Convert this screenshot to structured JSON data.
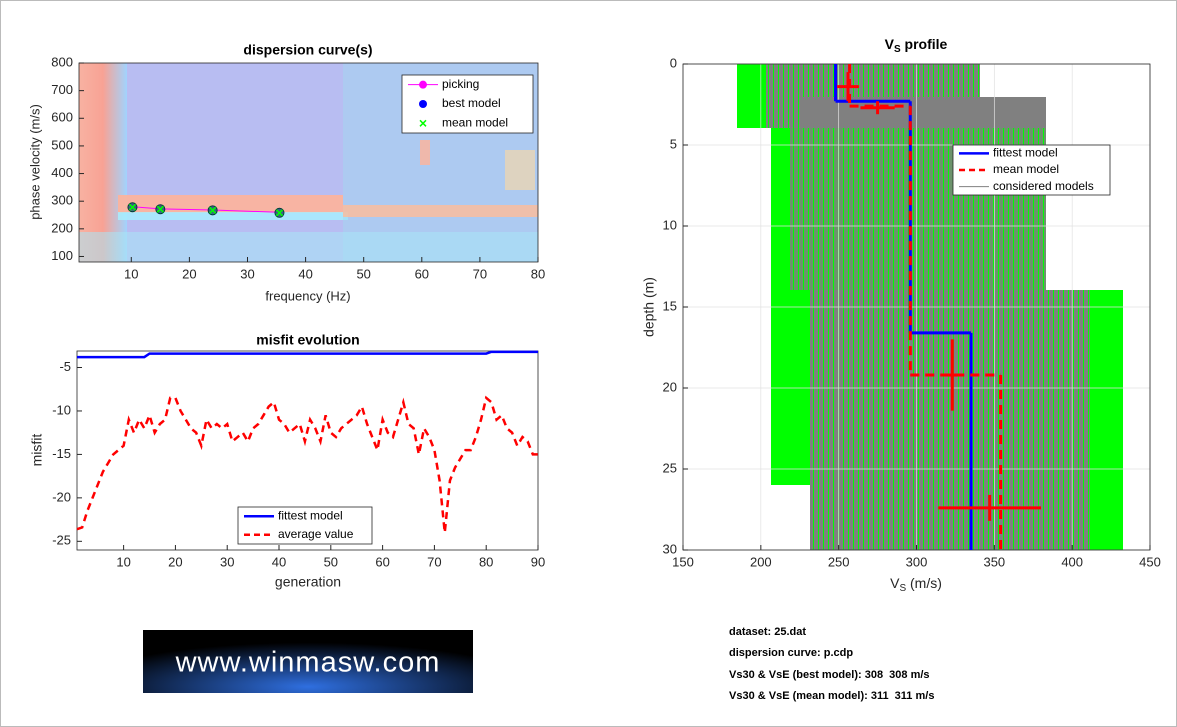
{
  "chart_data": [
    {
      "type": "scatter",
      "title": "dispersion curve(s)",
      "xlabel": "frequency (Hz)",
      "ylabel": "phase velocity (m/s)",
      "x": [
        10.2,
        15,
        24,
        35.5
      ],
      "series": [
        {
          "name": "picking",
          "color": "#ff00ff",
          "marker": "o",
          "line": true,
          "values": [
            280,
            272,
            268,
            260
          ]
        },
        {
          "name": "best model",
          "color": "#0000ff",
          "marker": "o",
          "line": false,
          "values": [
            278,
            271,
            267,
            258
          ]
        },
        {
          "name": "mean model",
          "color": "#00ff00",
          "marker": "x",
          "line": false,
          "values": [
            278,
            271,
            267,
            258
          ]
        }
      ],
      "xlim": [
        1,
        80
      ],
      "xticks": [
        10,
        20,
        30,
        40,
        50,
        60,
        70,
        80
      ],
      "ylim": [
        80,
        800
      ],
      "yticks": [
        100,
        200,
        300,
        400,
        500,
        600,
        700,
        800
      ],
      "grid": false,
      "legend": "upper right"
    },
    {
      "type": "line",
      "title": "misfit evolution",
      "xlabel": "generation",
      "ylabel": "misfit",
      "x": [
        1,
        2,
        3,
        4,
        5,
        6,
        7,
        8,
        9,
        10,
        11,
        12,
        13,
        14,
        15,
        16,
        17,
        18,
        19,
        20,
        21,
        22,
        23,
        24,
        25,
        26,
        27,
        28,
        29,
        30,
        31,
        32,
        33,
        34,
        35,
        36,
        37,
        38,
        39,
        40,
        41,
        42,
        43,
        44,
        45,
        46,
        47,
        48,
        49,
        50,
        51,
        52,
        53,
        54,
        55,
        56,
        57,
        58,
        59,
        60,
        61,
        62,
        63,
        64,
        65,
        66,
        67,
        68,
        69,
        70,
        71,
        72,
        73,
        74,
        75,
        76,
        77,
        78,
        79,
        80,
        81,
        82,
        83,
        84,
        85,
        86,
        87,
        88,
        89,
        90
      ],
      "series": [
        {
          "name": "fittest model",
          "color": "#0000ff",
          "dash": false,
          "values": [
            -3.8,
            -3.8,
            -3.8,
            -3.8,
            -3.8,
            -3.8,
            -3.8,
            -3.8,
            -3.8,
            -3.8,
            -3.8,
            -3.8,
            -3.8,
            -3.8,
            -3.4,
            -3.4,
            -3.4,
            -3.4,
            -3.4,
            -3.4,
            -3.4,
            -3.4,
            -3.4,
            -3.4,
            -3.4,
            -3.4,
            -3.4,
            -3.4,
            -3.4,
            -3.4,
            -3.4,
            -3.4,
            -3.4,
            -3.4,
            -3.4,
            -3.4,
            -3.4,
            -3.4,
            -3.4,
            -3.4,
            -3.4,
            -3.4,
            -3.4,
            -3.4,
            -3.4,
            -3.4,
            -3.4,
            -3.4,
            -3.4,
            -3.4,
            -3.4,
            -3.4,
            -3.4,
            -3.4,
            -3.4,
            -3.4,
            -3.4,
            -3.4,
            -3.4,
            -3.4,
            -3.4,
            -3.4,
            -3.4,
            -3.4,
            -3.4,
            -3.4,
            -3.4,
            -3.4,
            -3.4,
            -3.4,
            -3.4,
            -3.4,
            -3.4,
            -3.4,
            -3.4,
            -3.4,
            -3.4,
            -3.4,
            -3.4,
            -3.4,
            -3.2,
            -3.2,
            -3.2,
            -3.2,
            -3.2,
            -3.2,
            -3.2,
            -3.2,
            -3.2,
            -3.2
          ]
        },
        {
          "name": "average value",
          "color": "#ff0000",
          "dash": true,
          "values": [
            -23.6,
            -23.4,
            -21.5,
            -20,
            -18.5,
            -17,
            -16,
            -15,
            -14.5,
            -14,
            -11,
            -12.5,
            -11,
            -12,
            -10.5,
            -12.5,
            -11.5,
            -11,
            -8.5,
            -8.5,
            -10,
            -11,
            -12,
            -12.5,
            -14,
            -11,
            -12,
            -11.5,
            -12,
            -11.5,
            -13.5,
            -13,
            -12.5,
            -13.5,
            -12,
            -11.5,
            -10.5,
            -9.5,
            -9,
            -11,
            -11.5,
            -12.5,
            -12,
            -11.5,
            -13.5,
            -11,
            -12,
            -13.5,
            -10.5,
            -12.5,
            -13,
            -12,
            -11.5,
            -11,
            -10.5,
            -9.5,
            -11.5,
            -13,
            -14.5,
            -11,
            -12.5,
            -13,
            -11,
            -9,
            -11.5,
            -12,
            -15,
            -12,
            -13,
            -14.5,
            -18,
            -24,
            -18,
            -16.5,
            -15.5,
            -14.5,
            -14.5,
            -13,
            -11,
            -8.5,
            -9,
            -11,
            -10.5,
            -12,
            -12.5,
            -14,
            -13,
            -13.5,
            -15,
            -15
          ]
        }
      ],
      "xlim": [
        1,
        90
      ],
      "xticks": [
        10,
        20,
        30,
        40,
        50,
        60,
        70,
        80,
        90
      ],
      "ylim": [
        -26,
        -3.1
      ],
      "yticks": [
        -25,
        -20,
        -15,
        -10,
        -5
      ],
      "grid": false,
      "legend": "lower center"
    },
    {
      "type": "profile",
      "title": {
        "text": "V",
        "sub": "S",
        "after": " profile"
      },
      "xlabel": {
        "text": "V",
        "sub": "S",
        "after": " (m/s)"
      },
      "ylabel": "depth (m)",
      "series": [
        {
          "name": "fittest model",
          "color": "#0000ff",
          "dash": false,
          "values": [
            248,
            296,
            335
          ],
          "bottoms": [
            2.3,
            16.6,
            30
          ]
        },
        {
          "name": "mean model",
          "color": "#ff0000",
          "dash": true,
          "values": [
            257,
            296,
            354
          ],
          "bottoms": [
            2.6,
            19.2,
            30
          ]
        }
      ],
      "errorbars": {
        "color": "#ff0000",
        "x": [
          256,
          275,
          323,
          347
        ],
        "y": [
          1.4,
          2.7,
          19.2,
          27.4
        ],
        "xerr": [
          7,
          11,
          3,
          33
        ],
        "yerr": [
          0.9,
          0.4,
          2.2,
          0.8
        ]
      },
      "legend_extra": [
        {
          "name": "considered models",
          "color": "#808080"
        }
      ],
      "xlim": [
        150,
        450
      ],
      "xticks": [
        150,
        200,
        250,
        300,
        350,
        400,
        450
      ],
      "ylim": [
        0,
        30
      ],
      "yticks": [
        0,
        5,
        10,
        15,
        20,
        25,
        30
      ],
      "y_reversed": true,
      "grid": true,
      "legend": "upper right"
    }
  ],
  "info": [
    "dataset: 25.dat",
    "dispersion curve: p.cdp",
    "Vs30 & VsE (best model): 308  308 m/s",
    "Vs30 & VsE (mean model): 311  311 m/s"
  ],
  "logo": "www.winmasw.com"
}
